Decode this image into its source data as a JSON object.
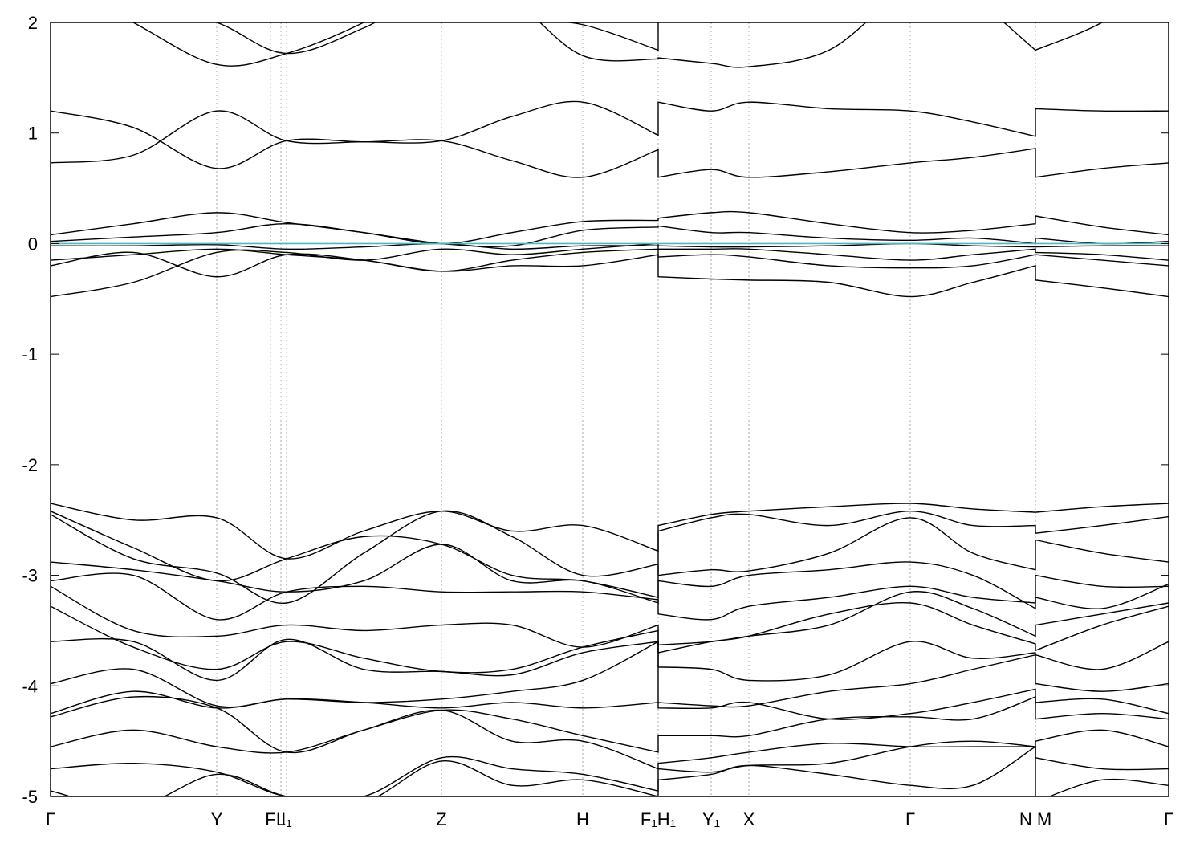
{
  "chart_data": {
    "type": "line",
    "x": [
      0,
      1.03,
      2.07,
      2.94,
      3.9,
      4.87,
      5.75,
      6.63,
      7.57,
      7.57,
      8.23,
      8.7,
      9.7,
      10.71,
      11.49,
      12.27,
      12.27,
      13.1,
      13.93
    ],
    "xlim": [
      0,
      13.93
    ],
    "ylim": [
      -5,
      2
    ],
    "yticks": [
      -5,
      -4,
      -3,
      -2,
      -1,
      0,
      1,
      2
    ],
    "xticks": [
      {
        "value": 0,
        "label": "Γ"
      },
      {
        "value": 2.07,
        "label": "Y"
      },
      {
        "value": 2.74,
        "label": "F"
      },
      {
        "value": 2.87,
        "label": "L"
      },
      {
        "value": 2.94,
        "label": "I₁"
      },
      {
        "value": 4.87,
        "label": "Z"
      },
      {
        "value": 6.63,
        "label": "H"
      },
      {
        "value": 7.57,
        "label": "F₁H₁"
      },
      {
        "value": 8.23,
        "label": "Y₁"
      },
      {
        "value": 8.7,
        "label": "X"
      },
      {
        "value": 10.71,
        "label": "Γ"
      },
      {
        "value": 12.27,
        "label": "N M"
      },
      {
        "value": 13.93,
        "label": "Γ"
      }
    ],
    "fermi_level": 0,
    "fermi_color": "#4bb8c8",
    "series": [
      {
        "color": "#000000",
        "values": [
          2.4,
          2.0,
          1.62,
          1.72,
          2.0,
          2.4,
          2.2,
          1.7,
          1.67,
          1.68,
          1.63,
          1.6,
          1.75,
          2.3,
          2.2,
          1.75,
          1.75,
          2.0,
          2.4
        ]
      },
      {
        "color": "#000000",
        "values": [
          2.5,
          2.2,
          2.0,
          1.72,
          1.95,
          2.3,
          2.05,
          1.98,
          1.75,
          2.3,
          2.3,
          2.3,
          2.3,
          2.4,
          2.3,
          2.2,
          2.2,
          2.3,
          2.5
        ]
      },
      {
        "color": "#000000",
        "values": [
          0.73,
          0.8,
          1.2,
          0.93,
          0.92,
          0.93,
          1.15,
          1.28,
          0.98,
          1.28,
          1.2,
          1.28,
          1.22,
          1.2,
          1.1,
          0.97,
          1.22,
          1.2,
          1.2
        ]
      },
      {
        "color": "#000000",
        "values": [
          1.2,
          1.05,
          0.68,
          0.93,
          0.92,
          0.93,
          0.75,
          0.6,
          0.85,
          0.6,
          0.67,
          0.6,
          0.65,
          0.73,
          0.78,
          0.86,
          0.6,
          0.68,
          0.73
        ]
      },
      {
        "color": "#000000",
        "values": [
          0.08,
          0.18,
          0.28,
          0.19,
          0.1,
          0.0,
          0.1,
          0.2,
          0.21,
          0.23,
          0.28,
          0.28,
          0.18,
          0.1,
          0.12,
          0.18,
          0.25,
          0.15,
          0.08
        ]
      },
      {
        "color": "#000000",
        "values": [
          0.02,
          0.06,
          0.1,
          0.18,
          0.1,
          0.0,
          -0.02,
          0.12,
          0.15,
          0.16,
          0.1,
          0.1,
          0.05,
          0.03,
          0.05,
          0.0,
          0.05,
          0.0,
          0.02
        ]
      },
      {
        "color": "#000000",
        "values": [
          -0.02,
          -0.02,
          -0.01,
          -0.05,
          -0.03,
          0.0,
          -0.05,
          -0.02,
          -0.02,
          -0.02,
          -0.03,
          -0.03,
          -0.02,
          0.0,
          -0.02,
          -0.03,
          -0.03,
          -0.02,
          -0.02
        ]
      },
      {
        "color": "#000000",
        "values": [
          -0.15,
          -0.1,
          -0.05,
          -0.1,
          -0.15,
          -0.25,
          -0.15,
          -0.08,
          -0.05,
          -0.05,
          -0.05,
          -0.05,
          -0.1,
          -0.15,
          -0.1,
          -0.05,
          -0.08,
          -0.1,
          -0.15
        ]
      },
      {
        "color": "#000000",
        "values": [
          -0.2,
          -0.08,
          -0.3,
          -0.1,
          -0.15,
          -0.25,
          -0.2,
          -0.2,
          -0.1,
          -0.12,
          -0.1,
          -0.12,
          -0.2,
          -0.22,
          -0.2,
          -0.1,
          -0.1,
          -0.15,
          -0.2
        ]
      },
      {
        "color": "#000000",
        "values": [
          -0.48,
          -0.35,
          -0.08,
          -0.08,
          -0.15,
          -0.05,
          -0.1,
          -0.05,
          0.0,
          -0.3,
          -0.32,
          -0.33,
          -0.35,
          -0.48,
          -0.35,
          -0.2,
          -0.33,
          -0.4,
          -0.48
        ]
      },
      {
        "color": "#000000",
        "values": [
          -2.35,
          -2.5,
          -2.48,
          -2.85,
          -2.6,
          -2.42,
          -2.6,
          -2.55,
          -2.78,
          -2.55,
          -2.45,
          -2.42,
          -2.38,
          -2.35,
          -2.4,
          -2.43,
          -2.43,
          -2.38,
          -2.35
        ]
      },
      {
        "color": "#000000",
        "values": [
          -2.42,
          -2.75,
          -3.05,
          -2.85,
          -2.65,
          -2.72,
          -3.0,
          -3.05,
          -3.2,
          -2.6,
          -2.48,
          -2.45,
          -2.55,
          -2.42,
          -2.55,
          -2.55,
          -2.62,
          -2.55,
          -2.47
        ]
      },
      {
        "color": "#000000",
        "values": [
          -2.45,
          -2.85,
          -2.98,
          -3.25,
          -2.8,
          -2.42,
          -2.65,
          -3.0,
          -2.9,
          -3.0,
          -2.95,
          -2.96,
          -2.8,
          -2.48,
          -2.8,
          -2.95,
          -2.68,
          -2.8,
          -2.88
        ]
      },
      {
        "color": "#000000",
        "values": [
          -2.88,
          -2.95,
          -3.05,
          -3.15,
          -3.05,
          -2.72,
          -3.05,
          -3.05,
          -3.25,
          -3.05,
          -3.1,
          -3.0,
          -2.95,
          -2.88,
          -3.0,
          -3.3,
          -3.0,
          -3.1,
          -3.1
        ]
      },
      {
        "color": "#000000",
        "values": [
          -3.05,
          -3.0,
          -3.4,
          -3.15,
          -3.1,
          -3.15,
          -3.15,
          -3.15,
          -3.22,
          -3.35,
          -3.4,
          -3.28,
          -3.2,
          -3.1,
          -3.2,
          -3.25,
          -3.2,
          -3.3,
          -3.08
        ]
      },
      {
        "color": "#000000",
        "values": [
          -3.1,
          -3.5,
          -3.55,
          -3.45,
          -3.5,
          -3.45,
          -3.45,
          -3.65,
          -3.45,
          -3.63,
          -3.6,
          -3.55,
          -3.45,
          -3.15,
          -3.3,
          -3.55,
          -3.45,
          -3.35,
          -3.25
        ]
      },
      {
        "color": "#000000",
        "values": [
          -3.28,
          -3.65,
          -3.85,
          -3.6,
          -3.75,
          -3.87,
          -3.85,
          -3.65,
          -3.5,
          -3.7,
          -3.6,
          -3.55,
          -3.35,
          -3.25,
          -3.45,
          -3.62,
          -3.68,
          -3.45,
          -3.28
        ]
      },
      {
        "color": "#000000",
        "values": [
          -3.6,
          -3.6,
          -3.95,
          -3.58,
          -3.85,
          -3.87,
          -3.9,
          -3.7,
          -3.6,
          -3.83,
          -3.85,
          -3.95,
          -3.9,
          -3.6,
          -3.75,
          -3.7,
          -3.72,
          -3.85,
          -3.6
        ]
      },
      {
        "color": "#000000",
        "values": [
          -3.98,
          -3.85,
          -4.18,
          -4.12,
          -4.15,
          -4.12,
          -4.05,
          -3.95,
          -3.6,
          -4.15,
          -4.18,
          -4.18,
          -4.05,
          -3.98,
          -3.85,
          -3.72,
          -3.98,
          -4.05,
          -3.98
        ]
      },
      {
        "color": "#000000",
        "values": [
          -4.25,
          -4.05,
          -4.2,
          -4.12,
          -4.15,
          -4.2,
          -4.15,
          -4.2,
          -4.15,
          -4.2,
          -4.2,
          -4.15,
          -4.3,
          -4.25,
          -4.15,
          -4.03,
          -4.15,
          -4.12,
          -4.25
        ]
      },
      {
        "color": "#000000",
        "values": [
          -4.28,
          -4.1,
          -4.2,
          -4.6,
          -4.4,
          -4.22,
          -4.3,
          -4.45,
          -4.6,
          -4.45,
          -4.45,
          -4.45,
          -4.3,
          -4.28,
          -4.3,
          -4.1,
          -4.3,
          -4.25,
          -4.3
        ]
      },
      {
        "color": "#000000",
        "values": [
          -4.55,
          -4.4,
          -4.55,
          -4.6,
          -4.4,
          -4.22,
          -4.5,
          -4.5,
          -4.75,
          -4.7,
          -4.65,
          -4.6,
          -4.52,
          -4.55,
          -4.55,
          -4.55,
          -4.5,
          -4.4,
          -4.55
        ]
      },
      {
        "color": "#000000",
        "values": [
          -4.75,
          -4.7,
          -4.78,
          -5.0,
          -5.0,
          -4.65,
          -4.75,
          -4.8,
          -4.95,
          -4.75,
          -4.78,
          -4.72,
          -4.7,
          -4.55,
          -4.5,
          -4.55,
          -4.65,
          -4.75,
          -4.75
        ]
      },
      {
        "color": "#000000",
        "values": [
          -4.95,
          -5.1,
          -4.8,
          -5.0,
          -5.05,
          -4.68,
          -4.9,
          -4.85,
          -5.0,
          -4.85,
          -4.8,
          -4.72,
          -4.8,
          -4.9,
          -4.9,
          -4.55,
          -5.05,
          -4.85,
          -4.9
        ]
      }
    ]
  }
}
